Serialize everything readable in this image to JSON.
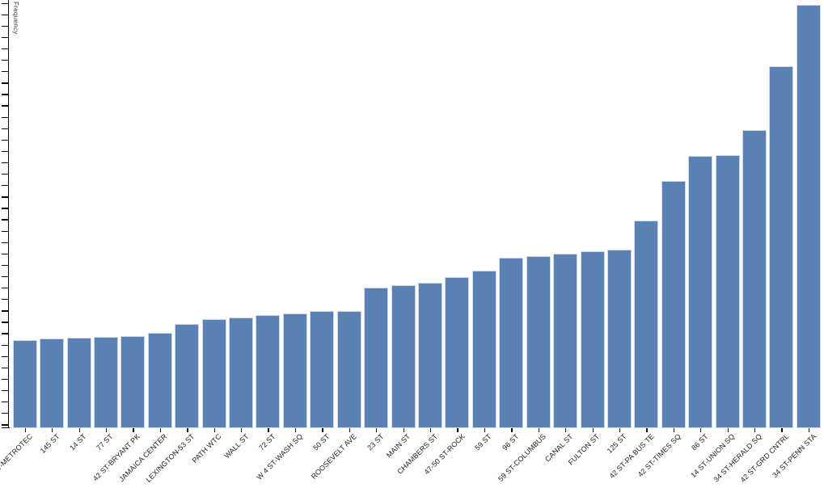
{
  "chart_data": {
    "type": "bar",
    "title": "",
    "xlabel": "",
    "ylabel": "Frequency",
    "grid": false,
    "legend": null,
    "y_axis_numeric_labels_visible": false,
    "y_tick_spacing_px": 14.1,
    "axis_note": "Y axis ticks are unlabeled (figure cropped at left edge); values below are bar heights estimated in pixels relative to baseline",
    "categories": [
      "JAY ST-METROTEC",
      "145 ST",
      "14 ST",
      "77 ST",
      "42 ST-BRYANT PK",
      "JAMAICA CENTER",
      "LEXINGTON-53 ST",
      "PATH WTC",
      "WALL ST",
      "72 ST",
      "W 4 ST-WASH SQ",
      "50 ST",
      "ROOSEVELT AVE",
      "23 ST",
      "MAIN ST",
      "CHAMBERS ST",
      "47-50 ST-ROCK",
      "59 ST",
      "96 ST",
      "59 ST-COLUMBUS",
      "CANAL ST",
      "FULTON ST",
      "125 ST",
      "42 ST-PA BUS TE",
      "42 ST-TIMES SQ",
      "86 ST",
      "14 ST-UNION SQ",
      "34 ST-HERALD SQ",
      "42 ST-GRD CNTRL",
      "34 ST-PENN STA"
    ],
    "values": [
      109,
      111,
      112,
      113,
      114,
      118,
      129,
      135,
      137,
      140,
      142,
      145,
      145,
      174,
      177,
      180,
      187,
      195,
      211,
      213,
      216,
      219,
      221,
      257,
      306,
      337,
      338,
      369,
      448,
      524
    ],
    "bar_color": "#5b81b4",
    "bar_edge_color": "#cdd9e8",
    "axis_color": "#000000"
  }
}
